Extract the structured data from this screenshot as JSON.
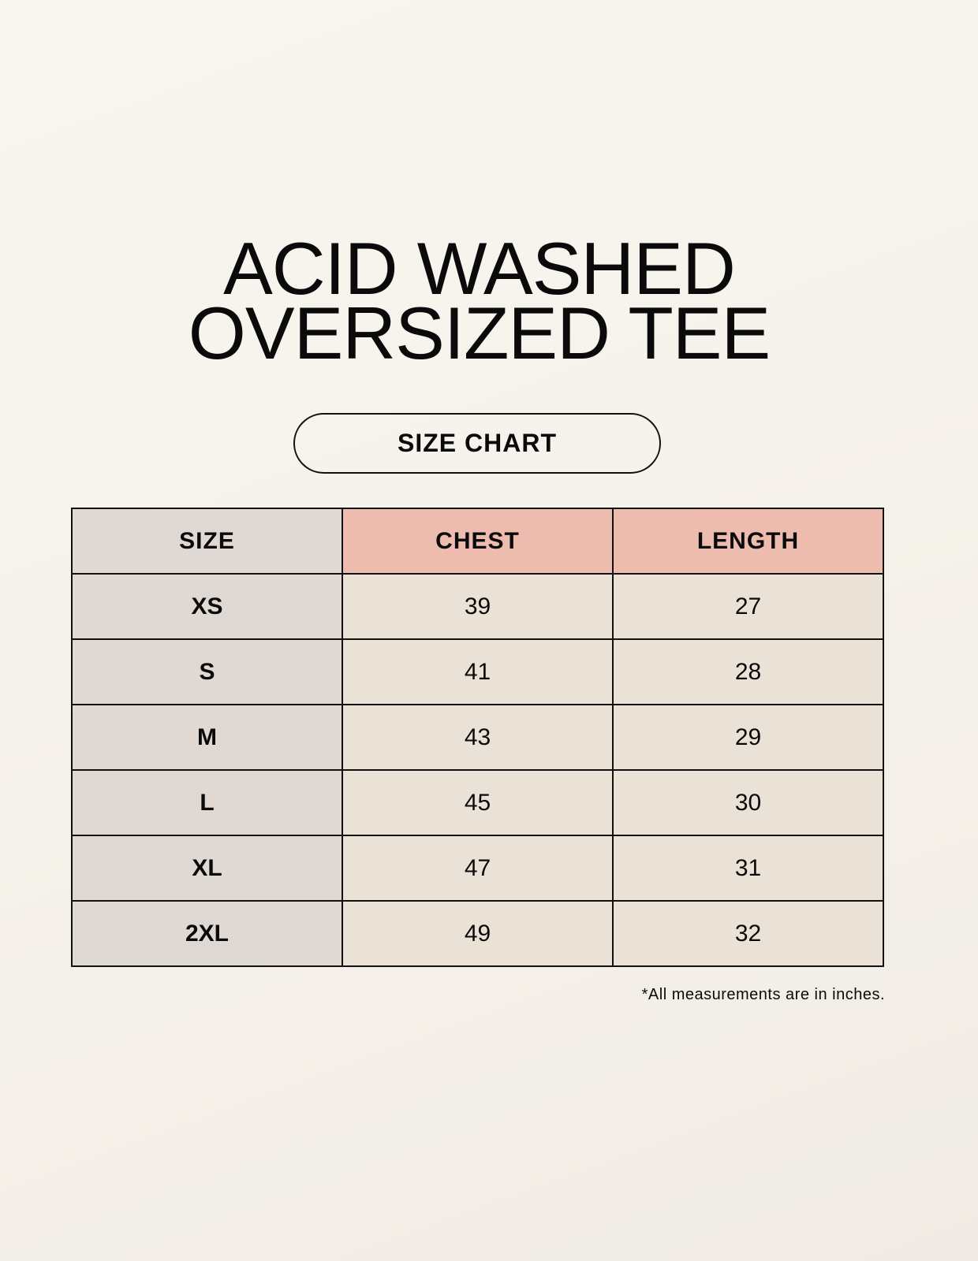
{
  "title_lines": [
    "ACID WASHED",
    "OVERSIZED TEE"
  ],
  "badge": "SIZE CHART",
  "table": {
    "headers": [
      "SIZE",
      "CHEST",
      "LENGTH"
    ],
    "rows": [
      [
        "XS",
        "39",
        "27"
      ],
      [
        "S",
        "41",
        "28"
      ],
      [
        "M",
        "43",
        "29"
      ],
      [
        "L",
        "45",
        "30"
      ],
      [
        "XL",
        "47",
        "31"
      ],
      [
        "2XL",
        "49",
        "32"
      ]
    ]
  },
  "footnote": "*All measurements are in inches.",
  "colors": {
    "size_column": "#e0d8d2",
    "header_accent": "#eebcae",
    "cell": "#ebe2d7",
    "background": "#f8f5ef"
  }
}
